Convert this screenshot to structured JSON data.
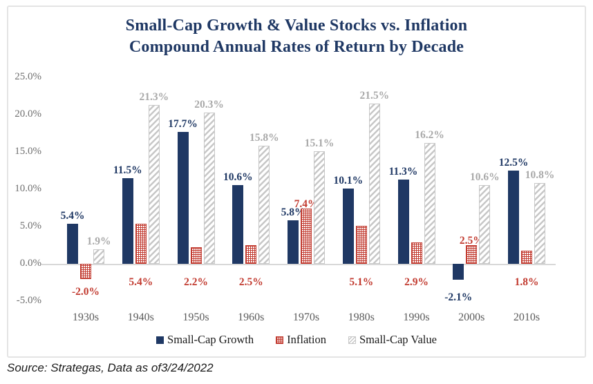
{
  "title": {
    "line1": "Small-Cap Growth & Value Stocks vs. Inflation",
    "line2": "Compound Annual Rates of Return by Decade"
  },
  "source_line": "Source: Strategas, Data as of3/24/2022",
  "colors": {
    "navy": "#1F3864",
    "red": "#C23B30",
    "gray_hatch": "#C7C7C7",
    "gray_label": "#A9A9A9",
    "axis_label": "#6E6E6E",
    "x_label": "#5A5A5A",
    "axis_line": "#D8D8D8",
    "text": "#1A1A1A"
  },
  "chart_data": {
    "type": "bar",
    "title": "Small-Cap Growth & Value Stocks vs. Inflation — Compound Annual Rates of Return by Decade",
    "categories": [
      "1930s",
      "1940s",
      "1950s",
      "1960s",
      "1970s",
      "1980s",
      "1990s",
      "2000s",
      "2010s"
    ],
    "series": [
      {
        "name": "Small-Cap Growth",
        "style": "solid-navy",
        "values": [
          5.4,
          11.5,
          17.7,
          10.6,
          5.8,
          10.1,
          11.3,
          -2.1,
          12.5
        ],
        "labels": [
          "5.4%",
          "11.5%",
          "17.7%",
          "10.6%",
          "5.8%",
          "10.1%",
          "11.3%",
          "-2.1%",
          "12.5%"
        ]
      },
      {
        "name": "Inflation",
        "style": "dotted-red",
        "values": [
          -2.0,
          5.4,
          2.2,
          2.5,
          7.4,
          5.1,
          2.9,
          2.5,
          1.8
        ],
        "labels": [
          "-2.0%",
          "5.4%",
          "2.2%",
          "2.5%",
          "7.4%",
          "5.1%",
          "2.9%",
          "2.5%",
          "1.8%"
        ],
        "label_placement": [
          "below-bar",
          "below-axis",
          "below-axis",
          "below-axis",
          "above-bar",
          "below-axis",
          "below-axis",
          "above-bar",
          "below-axis"
        ]
      },
      {
        "name": "Small-Cap Value",
        "style": "hatched-gray",
        "values": [
          1.9,
          21.3,
          20.3,
          15.8,
          15.1,
          21.5,
          16.2,
          10.6,
          10.8
        ],
        "labels": [
          "1.9%",
          "21.3%",
          "20.3%",
          "15.8%",
          "15.1%",
          "21.5%",
          "16.2%",
          "10.6%",
          "10.8%"
        ]
      }
    ],
    "y_axis": {
      "ticks": [
        "25.0%",
        "20.0%",
        "15.0%",
        "10.0%",
        "5.0%",
        "0.0%",
        "-5.0%"
      ],
      "max": 25,
      "min": -5,
      "grid": false
    },
    "legend": {
      "position": "bottom",
      "entries": [
        "Small-Cap Growth",
        "Inflation",
        "Small-Cap Value"
      ]
    }
  }
}
